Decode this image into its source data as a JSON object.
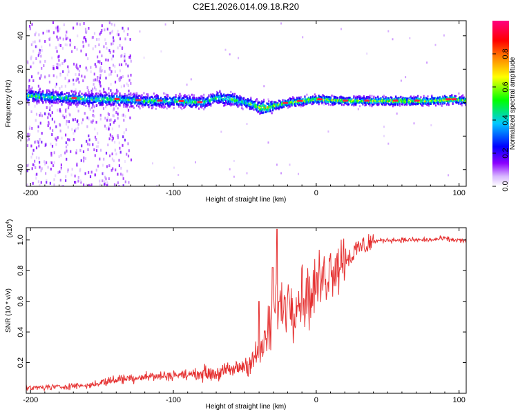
{
  "title": "C2E1.2026.014.09.18.R20",
  "chart_data": [
    {
      "type": "heatmap",
      "title": "C2E1.2026.014.09.18.R20",
      "xlabel": "Height of straight line (km)",
      "ylabel": "Frequency (Hz)",
      "xlim": [
        -203,
        105
      ],
      "ylim": [
        -50,
        49
      ],
      "xticks": [
        "-200",
        "-100",
        "0",
        "100"
      ],
      "yticks": [
        "-40",
        "-20",
        "0",
        "20",
        "40"
      ],
      "colorbar": {
        "label": "Normalized spectral amplitude",
        "range": [
          0,
          1
        ],
        "ticks": [
          "0.0",
          "0.2",
          "0.4",
          "0.6",
          "0.8"
        ],
        "colors": [
          "#ffffff",
          "#8b00ff",
          "#0000ff",
          "#00c8ff",
          "#00ff00",
          "#ffff00",
          "#ff8000",
          "#ff0000",
          "#ff0080"
        ]
      },
      "ridge": {
        "description_values_x_km": [
          -200,
          -180,
          -160,
          -140,
          -120,
          -100,
          -80,
          -70,
          -60,
          -50,
          -45,
          -40,
          -35,
          -30,
          -20,
          -10,
          0,
          20,
          40,
          60,
          80,
          95,
          105
        ],
        "frequency_hz": [
          4,
          3,
          2,
          2,
          1,
          1,
          0,
          3,
          2,
          0,
          -1,
          -3,
          -3,
          -2,
          0,
          1,
          2,
          1,
          1,
          1,
          1,
          2,
          1
        ]
      }
    },
    {
      "type": "line",
      "xlabel": "Height of straight line (km)",
      "ylabel": "SNR (10 * v/v)",
      "scale_label": "(x10",
      "scale_exponent": "4",
      "scale_suffix": ")",
      "xlim": [
        -203,
        105
      ],
      "ylim": [
        0,
        1.08
      ],
      "xticks": [
        "-200",
        "-100",
        "0",
        "100"
      ],
      "yticks": [
        "0.2",
        "0.4",
        "0.6",
        "0.8",
        "1.0"
      ],
      "color": "#e53030",
      "x": [
        -203,
        -190,
        -180,
        -170,
        -160,
        -150,
        -140,
        -130,
        -120,
        -110,
        -100,
        -90,
        -80,
        -70,
        -60,
        -50,
        -45,
        -40,
        -35,
        -30,
        -28,
        -25,
        -20,
        -15,
        -10,
        -5,
        0,
        5,
        10,
        15,
        20,
        25,
        30,
        40,
        50,
        60,
        70,
        80,
        90,
        95,
        100,
        105
      ],
      "y": [
        0.03,
        0.04,
        0.04,
        0.05,
        0.05,
        0.07,
        0.09,
        0.1,
        0.11,
        0.11,
        0.12,
        0.12,
        0.13,
        0.13,
        0.15,
        0.18,
        0.22,
        0.25,
        0.35,
        0.5,
        0.6,
        0.55,
        0.62,
        0.58,
        0.65,
        0.62,
        0.7,
        0.75,
        0.82,
        0.85,
        0.88,
        0.9,
        0.95,
        0.99,
        1.0,
        1.0,
        1.0,
        1.0,
        1.01,
        1.0,
        1.0,
        0.99
      ]
    }
  ]
}
